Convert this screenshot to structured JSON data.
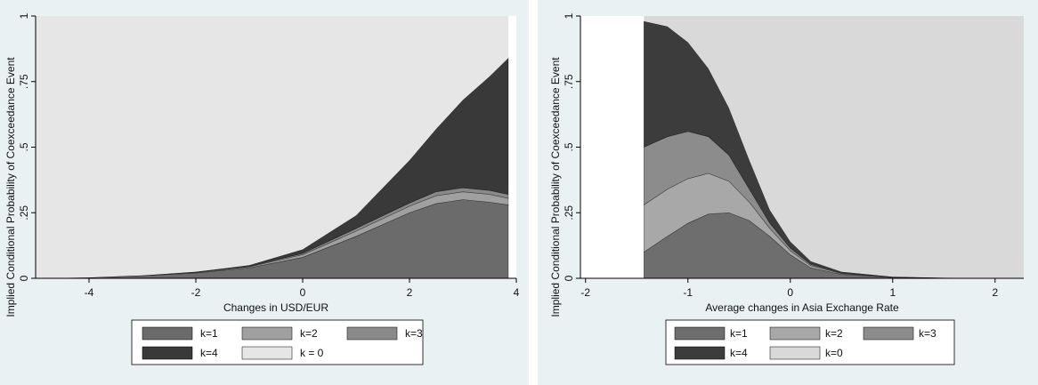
{
  "chart_data": [
    {
      "type": "area",
      "x_label": "Changes in USD/EUR",
      "y_label": "Implied Conditional Probability of Coexceedance Event",
      "x": [
        -5,
        -4,
        -3,
        -2,
        -1,
        0,
        1,
        2,
        2.5,
        3,
        3.5,
        3.85
      ],
      "series": [
        {
          "name": "k=1",
          "color": "#6b6b6b",
          "values": [
            0,
            0.003,
            0.01,
            0.02,
            0.04,
            0.08,
            0.16,
            0.25,
            0.285,
            0.3,
            0.29,
            0.28
          ]
        },
        {
          "name": "k=2",
          "color": "#a0a0a0",
          "values": [
            0,
            0,
            0.001,
            0.002,
            0.004,
            0.01,
            0.02,
            0.025,
            0.03,
            0.03,
            0.03,
            0.025
          ]
        },
        {
          "name": "k=3",
          "color": "#8a8a8a",
          "values": [
            0,
            0,
            0,
            0.001,
            0.002,
            0.005,
            0.01,
            0.012,
            0.015,
            0.015,
            0.015,
            0.015
          ]
        },
        {
          "name": "k=4",
          "color": "#393939",
          "values": [
            0,
            0,
            0,
            0.002,
            0.004,
            0.015,
            0.05,
            0.163,
            0.24,
            0.335,
            0.435,
            0.52
          ]
        },
        {
          "name": "k = 0",
          "color": "#e6e6e6",
          "values": [
            1,
            0.997,
            0.989,
            0.975,
            0.95,
            0.89,
            0.76,
            0.55,
            0.43,
            0.32,
            0.23,
            0.16
          ]
        }
      ],
      "xlim": [
        -5,
        4
      ],
      "xticks": [
        -4,
        -2,
        0,
        2,
        4
      ],
      "ylim": [
        0,
        1
      ],
      "yticks": [
        0,
        {
          "value": 0.25,
          "label": ".25"
        },
        {
          "value": 0.5,
          "label": ".5"
        },
        {
          "value": 0.75,
          "label": ".75"
        },
        1
      ],
      "stacked": true,
      "grid": false,
      "legend": "bottom"
    },
    {
      "type": "area",
      "x_label": "Average changes in Asia Exchange Rate",
      "y_label": "Implied Conditional Probability of Coexceedance Event",
      "x": [
        -1.43,
        -1.2,
        -1,
        -0.8,
        -0.6,
        -0.4,
        -0.2,
        0,
        0.2,
        0.5,
        1,
        1.5,
        2,
        2.28
      ],
      "series": [
        {
          "name": "k=1",
          "color": "#6e6e6e",
          "values": [
            0.1,
            0.16,
            0.21,
            0.245,
            0.25,
            0.22,
            0.16,
            0.09,
            0.04,
            0.015,
            0.003,
            0,
            0,
            0
          ]
        },
        {
          "name": "k=2",
          "color": "#a8a8a8",
          "values": [
            0.18,
            0.18,
            0.17,
            0.155,
            0.12,
            0.07,
            0.03,
            0.015,
            0.008,
            0.003,
            0.001,
            0.001,
            0,
            0
          ]
        },
        {
          "name": "k=3",
          "color": "#8c8c8c",
          "values": [
            0.22,
            0.2,
            0.18,
            0.14,
            0.1,
            0.05,
            0.02,
            0.01,
            0.005,
            0.002,
            0.001,
            0,
            0,
            0
          ]
        },
        {
          "name": "k=4",
          "color": "#3c3c3c",
          "values": [
            0.48,
            0.42,
            0.34,
            0.26,
            0.18,
            0.11,
            0.05,
            0.025,
            0.012,
            0.005,
            0.001,
            0.001,
            0.001,
            0
          ]
        },
        {
          "name": "k=0",
          "color": "#d9d9d9",
          "values": [
            0.02,
            0.04,
            0.1,
            0.2,
            0.35,
            0.55,
            0.74,
            0.86,
            0.935,
            0.975,
            0.994,
            0.998,
            0.999,
            1
          ]
        }
      ],
      "xlim": [
        -2.05,
        2.28
      ],
      "xticks": [
        -2,
        -1,
        0,
        1,
        2
      ],
      "ylim": [
        0,
        1
      ],
      "yticks": [
        0,
        {
          "value": 0.25,
          "label": ".25"
        },
        {
          "value": 0.5,
          "label": ".5"
        },
        {
          "value": 0.75,
          "label": ".75"
        },
        1
      ],
      "stacked": true,
      "grid": false,
      "legend": "bottom"
    }
  ]
}
